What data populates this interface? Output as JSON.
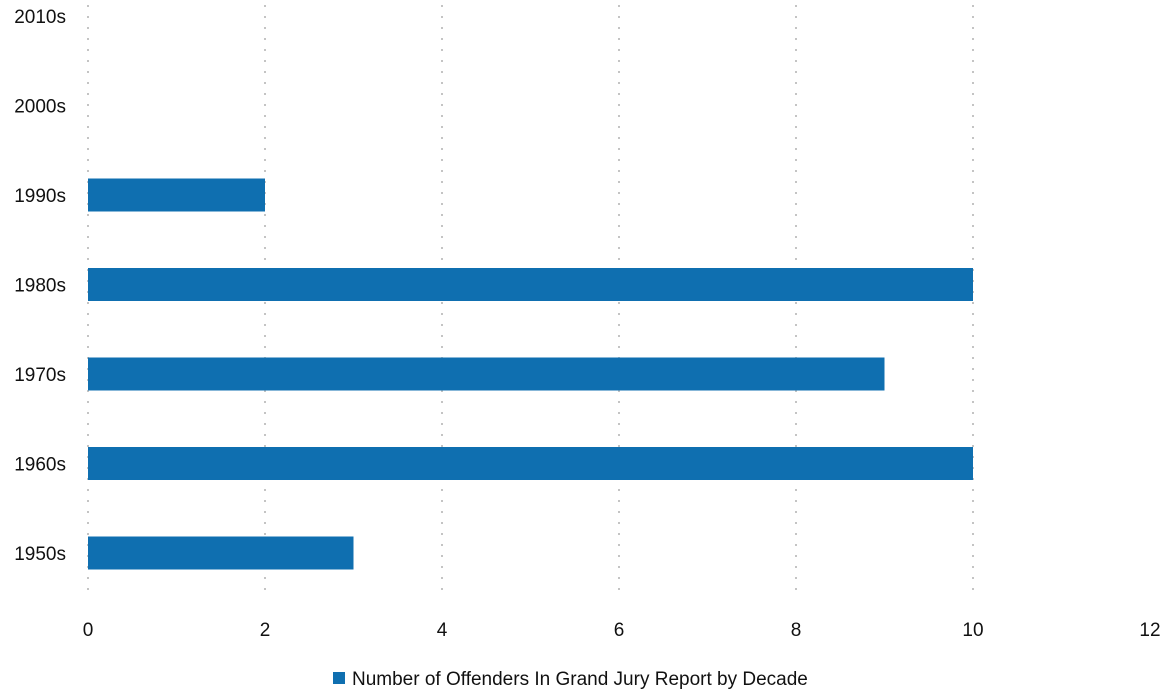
{
  "chart_data": {
    "type": "bar",
    "orientation": "horizontal",
    "categories": [
      "1950s",
      "1960s",
      "1970s",
      "1980s",
      "1990s",
      "2000s",
      "2010s"
    ],
    "series": [
      {
        "name": "Number of Offenders In Grand Jury Report by Decade",
        "values": [
          3,
          10,
          9,
          10,
          2,
          0,
          0
        ],
        "color": "#0f6fb0"
      }
    ],
    "xlim": [
      0,
      12
    ],
    "x_ticks": [
      "0",
      "2",
      "4",
      "6",
      "8",
      "10",
      "12"
    ],
    "grid": "vertical, dashed",
    "legend_position": "bottom"
  }
}
